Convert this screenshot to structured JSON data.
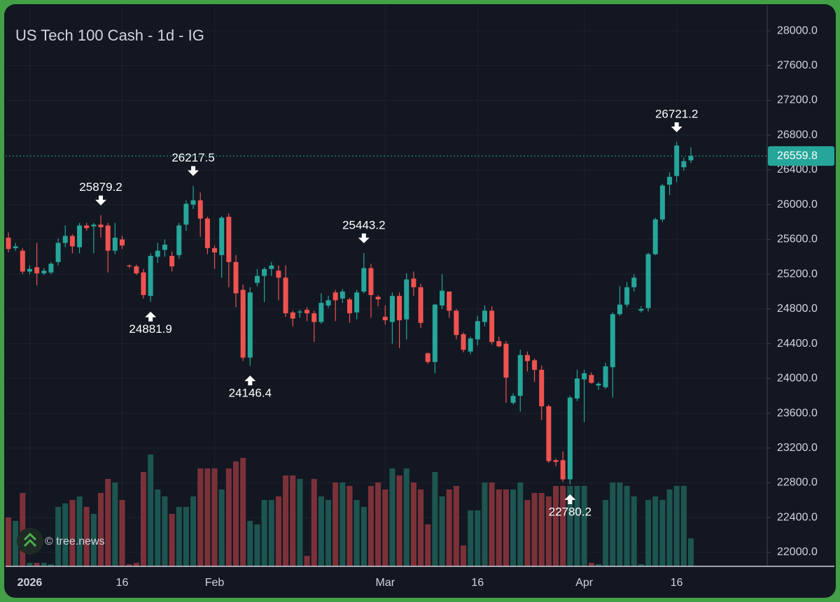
{
  "chart_data": {
    "type": "candlestick",
    "title": "US Tech 100 Cash - 1d - IG",
    "watermark": "© tree.news",
    "categories": [
      null,
      null,
      null,
      "2026",
      null,
      null,
      null,
      null,
      null,
      null,
      null,
      null,
      null,
      null,
      null,
      null,
      "16",
      null,
      null,
      null,
      null,
      null,
      null,
      null,
      null,
      null,
      null,
      null,
      null,
      "Feb",
      null,
      null,
      null,
      null,
      null,
      null,
      null,
      null,
      null,
      null,
      null,
      null,
      null,
      null,
      null,
      null,
      null,
      null,
      null,
      null,
      null,
      null,
      null,
      "Mar",
      null,
      null,
      null,
      null,
      null,
      null,
      null,
      null,
      null,
      null,
      null,
      null,
      "16",
      null,
      null,
      null,
      null,
      null,
      null,
      null,
      null,
      null,
      null,
      null,
      null,
      null,
      null,
      "Apr",
      null,
      null,
      null,
      null,
      null,
      null,
      null,
      null,
      null,
      null,
      null,
      null,
      "16",
      null,
      null
    ],
    "open": [
      25620,
      25500,
      25470,
      25230,
      25280,
      25210,
      25220,
      25340,
      25560,
      25640,
      25510,
      25760,
      25750,
      25770,
      25760,
      25470,
      25600,
      25300,
      25290,
      25220,
      24950,
      25400,
      25480,
      25410,
      25420,
      25770,
      26000,
      26050,
      25840,
      25500,
      25420,
      25860,
      25340,
      25020,
      24240,
      25100,
      25180,
      25260,
      25240,
      25160,
      24760,
      24760,
      24790,
      24750,
      24650,
      24840,
      24990,
      24920,
      24910,
      24760,
      25000,
      25270,
      24940,
      24710,
      24650,
      24950,
      24680,
      25150,
      25050,
      24290,
      24190,
      24840,
      25000,
      24780,
      24510,
      24310,
      24450,
      24650,
      24780,
      24430,
      24400,
      23720,
      23800,
      24270,
      24210,
      24100,
      23680,
      23060,
      23060,
      22840,
      23770,
      23990,
      24040,
      23920,
      23900,
      24130,
      24740,
      24850,
      25050,
      24780,
      24810,
      25430,
      25830,
      26230,
      26330,
      26430,
      26510
    ],
    "high": [
      25680,
      25560,
      25500,
      25300,
      25560,
      25270,
      25340,
      25610,
      25760,
      25660,
      25790,
      25790,
      25790,
      25879.2,
      25790,
      25790,
      25640,
      25310,
      25310,
      25260,
      25440,
      25560,
      25600,
      25460,
      25790,
      26050,
      26217.5,
      26140,
      25860,
      25530,
      25870,
      25900,
      25420,
      25080,
      25050,
      25260,
      25280,
      25340,
      25300,
      25300,
      24780,
      24790,
      24820,
      24780,
      24980,
      24950,
      25020,
      25030,
      24930,
      25020,
      25443.2,
      25320,
      24960,
      24840,
      24990,
      24990,
      25210,
      25230,
      25090,
      24300,
      24860,
      25200,
      25000,
      24800,
      24530,
      24480,
      24720,
      24840,
      24830,
      24480,
      24430,
      23830,
      24330,
      24310,
      24230,
      24150,
      23700,
      23080,
      23160,
      23800,
      24100,
      24100,
      24070,
      23960,
      24180,
      24760,
      25060,
      25110,
      25200,
      24830,
      25450,
      25850,
      26240,
      26370,
      26721.2,
      26540,
      26660
    ],
    "low": [
      25450,
      25470,
      25200,
      25200,
      25070,
      25190,
      25200,
      25300,
      25510,
      25440,
      25440,
      25700,
      25440,
      25620,
      25220,
      25430,
      25490,
      25270,
      25190,
      24920,
      24881.9,
      25330,
      25400,
      25230,
      25380,
      25700,
      25950,
      25630,
      25430,
      25260,
      25160,
      25050,
      24820,
      24200,
      24146.4,
      25060,
      24880,
      25180,
      24900,
      24710,
      24600,
      24700,
      24660,
      24420,
      24630,
      24810,
      24660,
      24870,
      24640,
      24680,
      24980,
      24700,
      24830,
      24620,
      24400,
      24350,
      24450,
      24950,
      24580,
      24170,
      24060,
      24800,
      24700,
      24450,
      24300,
      24280,
      24380,
      24600,
      24390,
      24360,
      23720,
      23700,
      23620,
      24080,
      23960,
      23520,
      23030,
      22990,
      22810,
      22780.2,
      23740,
      23500,
      23940,
      23870,
      23880,
      23780,
      24720,
      24820,
      25000,
      24760,
      24770,
      25420,
      25800,
      26110,
      26260,
      26390,
      26480
    ],
    "close": [
      25490,
      25520,
      25230,
      25260,
      25210,
      25240,
      25320,
      25560,
      25640,
      25520,
      25760,
      25730,
      25770,
      25740,
      25470,
      25620,
      25530,
      25290,
      25210,
      24960,
      25410,
      25470,
      25540,
      25290,
      25760,
      26010,
      26050,
      25840,
      25500,
      25450,
      25850,
      25340,
      24980,
      24240,
      24990,
      25180,
      25260,
      25300,
      25160,
      24750,
      24690,
      24770,
      24750,
      24650,
      24870,
      24900,
      24900,
      25000,
      24750,
      24990,
      25270,
      24960,
      24910,
      24670,
      24950,
      24670,
      25140,
      25050,
      24640,
      24190,
      24850,
      25010,
      24780,
      24500,
      24330,
      24460,
      24660,
      24780,
      24420,
      24370,
      24010,
      23800,
      24270,
      24200,
      24100,
      23680,
      23050,
      23040,
      22840,
      23780,
      24000,
      24060,
      23950,
      23940,
      24140,
      24740,
      24850,
      25050,
      25160,
      24800,
      25430,
      25830,
      26220,
      26320,
      26680,
      26500,
      26559.8
    ],
    "volume": [
      70,
      65,
      105,
      5,
      5,
      5,
      3,
      85,
      90,
      95,
      100,
      85,
      75,
      105,
      125,
      120,
      95,
      3,
      5,
      135,
      160,
      110,
      100,
      75,
      85,
      85,
      100,
      140,
      140,
      140,
      110,
      140,
      150,
      155,
      65,
      60,
      95,
      95,
      100,
      130,
      130,
      125,
      15,
      125,
      100,
      95,
      120,
      120,
      115,
      95,
      85,
      115,
      120,
      110,
      140,
      130,
      140,
      120,
      110,
      60,
      135,
      100,
      110,
      115,
      30,
      80,
      80,
      120,
      120,
      110,
      110,
      110,
      120,
      95,
      105,
      105,
      100,
      115,
      115,
      115,
      115,
      115,
      5,
      3,
      95,
      120,
      120,
      115,
      100,
      3,
      95,
      100,
      95,
      110,
      115,
      115,
      40
    ],
    "up_color": "#26a69a",
    "down_color": "#ef5350",
    "volume_up_color": "#1d5550",
    "volume_down_color": "#7c3139",
    "ylim": [
      21839,
      28290
    ],
    "yticks": [
      {
        "value": 22000,
        "label": "22000.0"
      },
      {
        "value": 22400,
        "label": "22400.0"
      },
      {
        "value": 22800,
        "label": "22800.0"
      },
      {
        "value": 23200,
        "label": "23200.0"
      },
      {
        "value": 23600,
        "label": "23600.0"
      },
      {
        "value": 24000,
        "label": "24000.0"
      },
      {
        "value": 24400,
        "label": "24400.0"
      },
      {
        "value": 24800,
        "label": "24800.0"
      },
      {
        "value": 25200,
        "label": "25200.0"
      },
      {
        "value": 25600,
        "label": "25600.0"
      },
      {
        "value": 26000,
        "label": "26000.0"
      },
      {
        "value": 26400,
        "label": "26400.0"
      },
      {
        "value": 26800,
        "label": "26800.0"
      },
      {
        "value": 27200,
        "label": "27200.0"
      },
      {
        "value": 27600,
        "label": "27600.0"
      },
      {
        "value": 28000,
        "label": "28000.0"
      }
    ],
    "grid": true,
    "marked_highs": [
      13,
      26,
      50,
      94
    ],
    "marked_lows": [
      20,
      34,
      79
    ],
    "last_price_line": true
  }
}
